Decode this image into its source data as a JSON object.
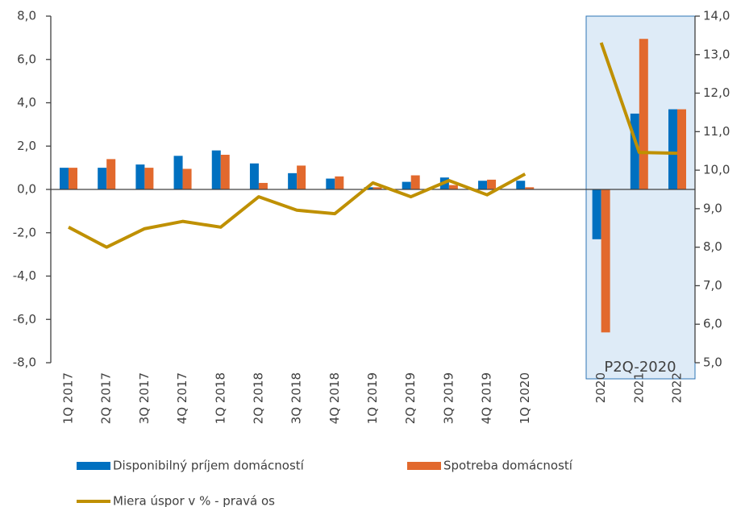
{
  "chart_data": {
    "type": "bar_line",
    "categories": [
      "1Q 2017",
      "2Q 2017",
      "3Q 2017",
      "4Q 2017",
      "1Q 2018",
      "2Q 2018",
      "3Q 2018",
      "4Q 2018",
      "1Q 2019",
      "2Q 2019",
      "3Q 2019",
      "4Q 2019",
      "1Q 2020",
      null,
      "2020",
      "2021",
      "2022"
    ],
    "series": [
      {
        "name": "Disponibilný príjem domácností",
        "type": "bar",
        "color": "#0070c0",
        "values": [
          1.0,
          1.0,
          1.15,
          1.55,
          1.8,
          1.2,
          0.75,
          0.5,
          0.1,
          0.35,
          0.55,
          0.4,
          0.4,
          null,
          -2.3,
          3.5,
          3.7
        ]
      },
      {
        "name": "Spotreba domácností",
        "type": "bar",
        "color": "#e2692d",
        "values": [
          1.0,
          1.4,
          1.0,
          0.95,
          1.6,
          0.3,
          1.1,
          0.6,
          0.1,
          0.65,
          0.2,
          0.45,
          0.1,
          null,
          -6.6,
          6.95,
          3.7
        ]
      },
      {
        "name": "Miera úspor v % - pravá os",
        "type": "line",
        "axis": "y2",
        "color": "#bf9000",
        "values": [
          8.52,
          8.0,
          8.48,
          8.67,
          8.52,
          9.31,
          8.96,
          8.87,
          9.67,
          9.31,
          9.73,
          9.36,
          9.9,
          null,
          13.31,
          10.46,
          10.44
        ]
      }
    ],
    "ylim": [
      -8,
      8
    ],
    "yticks": [
      {
        "value": -8,
        "label": "-8,0"
      },
      {
        "value": -6,
        "label": "-6,0"
      },
      {
        "value": -4,
        "label": "-4,0"
      },
      {
        "value": -2,
        "label": "-2,0"
      },
      {
        "value": 0,
        "label": "0,0"
      },
      {
        "value": 2,
        "label": "2,0"
      },
      {
        "value": 4,
        "label": "4,0"
      },
      {
        "value": 6,
        "label": "6,0"
      },
      {
        "value": 8,
        "label": "8,0"
      }
    ],
    "y2lim": [
      5,
      14
    ],
    "y2ticks": [
      {
        "value": 5,
        "label": "5,0"
      },
      {
        "value": 6,
        "label": "6,0"
      },
      {
        "value": 7,
        "label": "7,0"
      },
      {
        "value": 8,
        "label": "8,0"
      },
      {
        "value": 9,
        "label": "9,0"
      },
      {
        "value": 10,
        "label": "10,0"
      },
      {
        "value": 11,
        "label": "11,0"
      },
      {
        "value": 12,
        "label": "12,0"
      },
      {
        "value": 13,
        "label": "13,0"
      },
      {
        "value": 14,
        "label": "14,0"
      }
    ],
    "annotation": "P2Q-2020",
    "grid": false
  }
}
